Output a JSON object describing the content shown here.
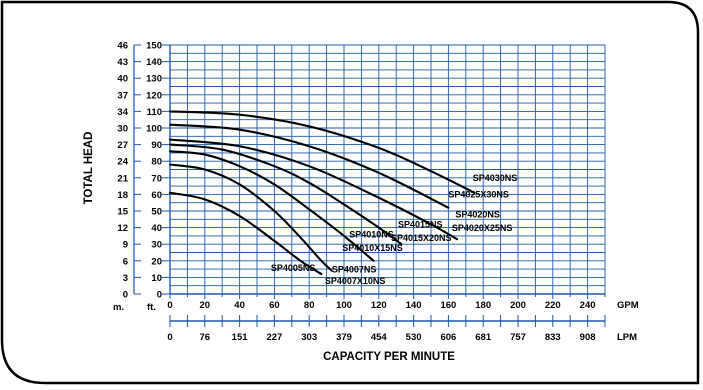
{
  "chart_data": {
    "type": "line",
    "title": "",
    "xlabel": "CAPACITY PER MINUTE",
    "ylabel": "TOTAL HEAD",
    "x_unit": "GPM",
    "x2_unit": "LPM",
    "y_unit": "ft.",
    "y2_unit": "m.",
    "xlim": [
      0,
      250
    ],
    "ylim": [
      0,
      150
    ],
    "grid": true,
    "x_ticks": [
      "0",
      "20",
      "40",
      "60",
      "80",
      "100",
      "120",
      "140",
      "160",
      "180",
      "200",
      "220",
      "240"
    ],
    "x2_ticks": [
      "0",
      "76",
      "151",
      "227",
      "303",
      "379",
      "454",
      "530",
      "606",
      "681",
      "757",
      "833",
      "908"
    ],
    "y_ticks": [
      "0",
      "10",
      "20",
      "30",
      "40",
      "50",
      "60",
      "70",
      "80",
      "90",
      "100",
      "110",
      "120",
      "130",
      "140",
      "150"
    ],
    "y2_ticks": [
      "0",
      "3",
      "6",
      "9",
      "12",
      "15",
      "18",
      "21",
      "24",
      "27",
      "30",
      "34",
      "37",
      "40",
      "43",
      "46"
    ],
    "colors": {
      "curve": "#000000",
      "grid": "#1e5aa8",
      "frame": "#000000"
    },
    "series": [
      {
        "name": "SP4005NS",
        "points": [
          [
            0,
            61
          ],
          [
            20,
            57
          ],
          [
            40,
            47
          ],
          [
            60,
            32
          ],
          [
            75,
            20
          ],
          [
            87,
            12
          ]
        ]
      },
      {
        "name": "SP4007NS",
        "points": [
          [
            0,
            78
          ],
          [
            20,
            75
          ],
          [
            40,
            66
          ],
          [
            60,
            50
          ],
          [
            75,
            34
          ],
          [
            87,
            20
          ],
          [
            93,
            14
          ]
        ]
      },
      {
        "name": "SP4010NS",
        "points": [
          [
            0,
            86
          ],
          [
            20,
            84
          ],
          [
            40,
            77
          ],
          [
            60,
            66
          ],
          [
            80,
            51
          ],
          [
            100,
            35
          ],
          [
            117,
            20
          ]
        ]
      },
      {
        "name": "SP4015NS",
        "points": [
          [
            0,
            90
          ],
          [
            30,
            87
          ],
          [
            60,
            77
          ],
          [
            80,
            67
          ],
          [
            100,
            54
          ],
          [
            120,
            40
          ],
          [
            133,
            30
          ]
        ]
      },
      {
        "name": "SP4020NS",
        "points": [
          [
            0,
            93
          ],
          [
            40,
            89
          ],
          [
            80,
            77
          ],
          [
            120,
            58
          ],
          [
            150,
            42
          ],
          [
            165,
            33
          ]
        ]
      },
      {
        "name": "SP4025X30NS",
        "points": [
          [
            0,
            102
          ],
          [
            40,
            99
          ],
          [
            80,
            89
          ],
          [
            120,
            73
          ],
          [
            160,
            52
          ]
        ]
      },
      {
        "name": "SP4030NS",
        "points": [
          [
            0,
            110
          ],
          [
            40,
            108
          ],
          [
            80,
            101
          ],
          [
            120,
            88
          ],
          [
            150,
            74
          ],
          [
            175,
            61
          ]
        ]
      }
    ],
    "annotations": [
      {
        "id": "sp4005ns",
        "text": "SP4005NS",
        "x": 58,
        "y": 14
      },
      {
        "id": "sp4007ns",
        "text": "SP4007NS",
        "x": 93,
        "y": 13
      },
      {
        "id": "sp4007x10ns",
        "text": "SP4007X10NS",
        "x": 89,
        "y": 6
      },
      {
        "id": "sp4010ns",
        "text": "SP4010NS",
        "x": 103,
        "y": 34
      },
      {
        "id": "sp4010x15ns",
        "text": "SP4010X15NS",
        "x": 99,
        "y": 26
      },
      {
        "id": "sp4015ns",
        "text": "SP4015NS",
        "x": 131,
        "y": 40
      },
      {
        "id": "sp4015x20ns",
        "text": "SP4015X20NS",
        "x": 127,
        "y": 32
      },
      {
        "id": "sp4020ns",
        "text": "SP4020NS",
        "x": 164,
        "y": 46
      },
      {
        "id": "sp4020x25ns",
        "text": "SP4020X25NS",
        "x": 162,
        "y": 38
      },
      {
        "id": "sp4025x30ns",
        "text": "SP4025X30NS",
        "x": 160,
        "y": 58
      },
      {
        "id": "sp4030ns",
        "text": "SP4030NS",
        "x": 174,
        "y": 68
      }
    ]
  }
}
